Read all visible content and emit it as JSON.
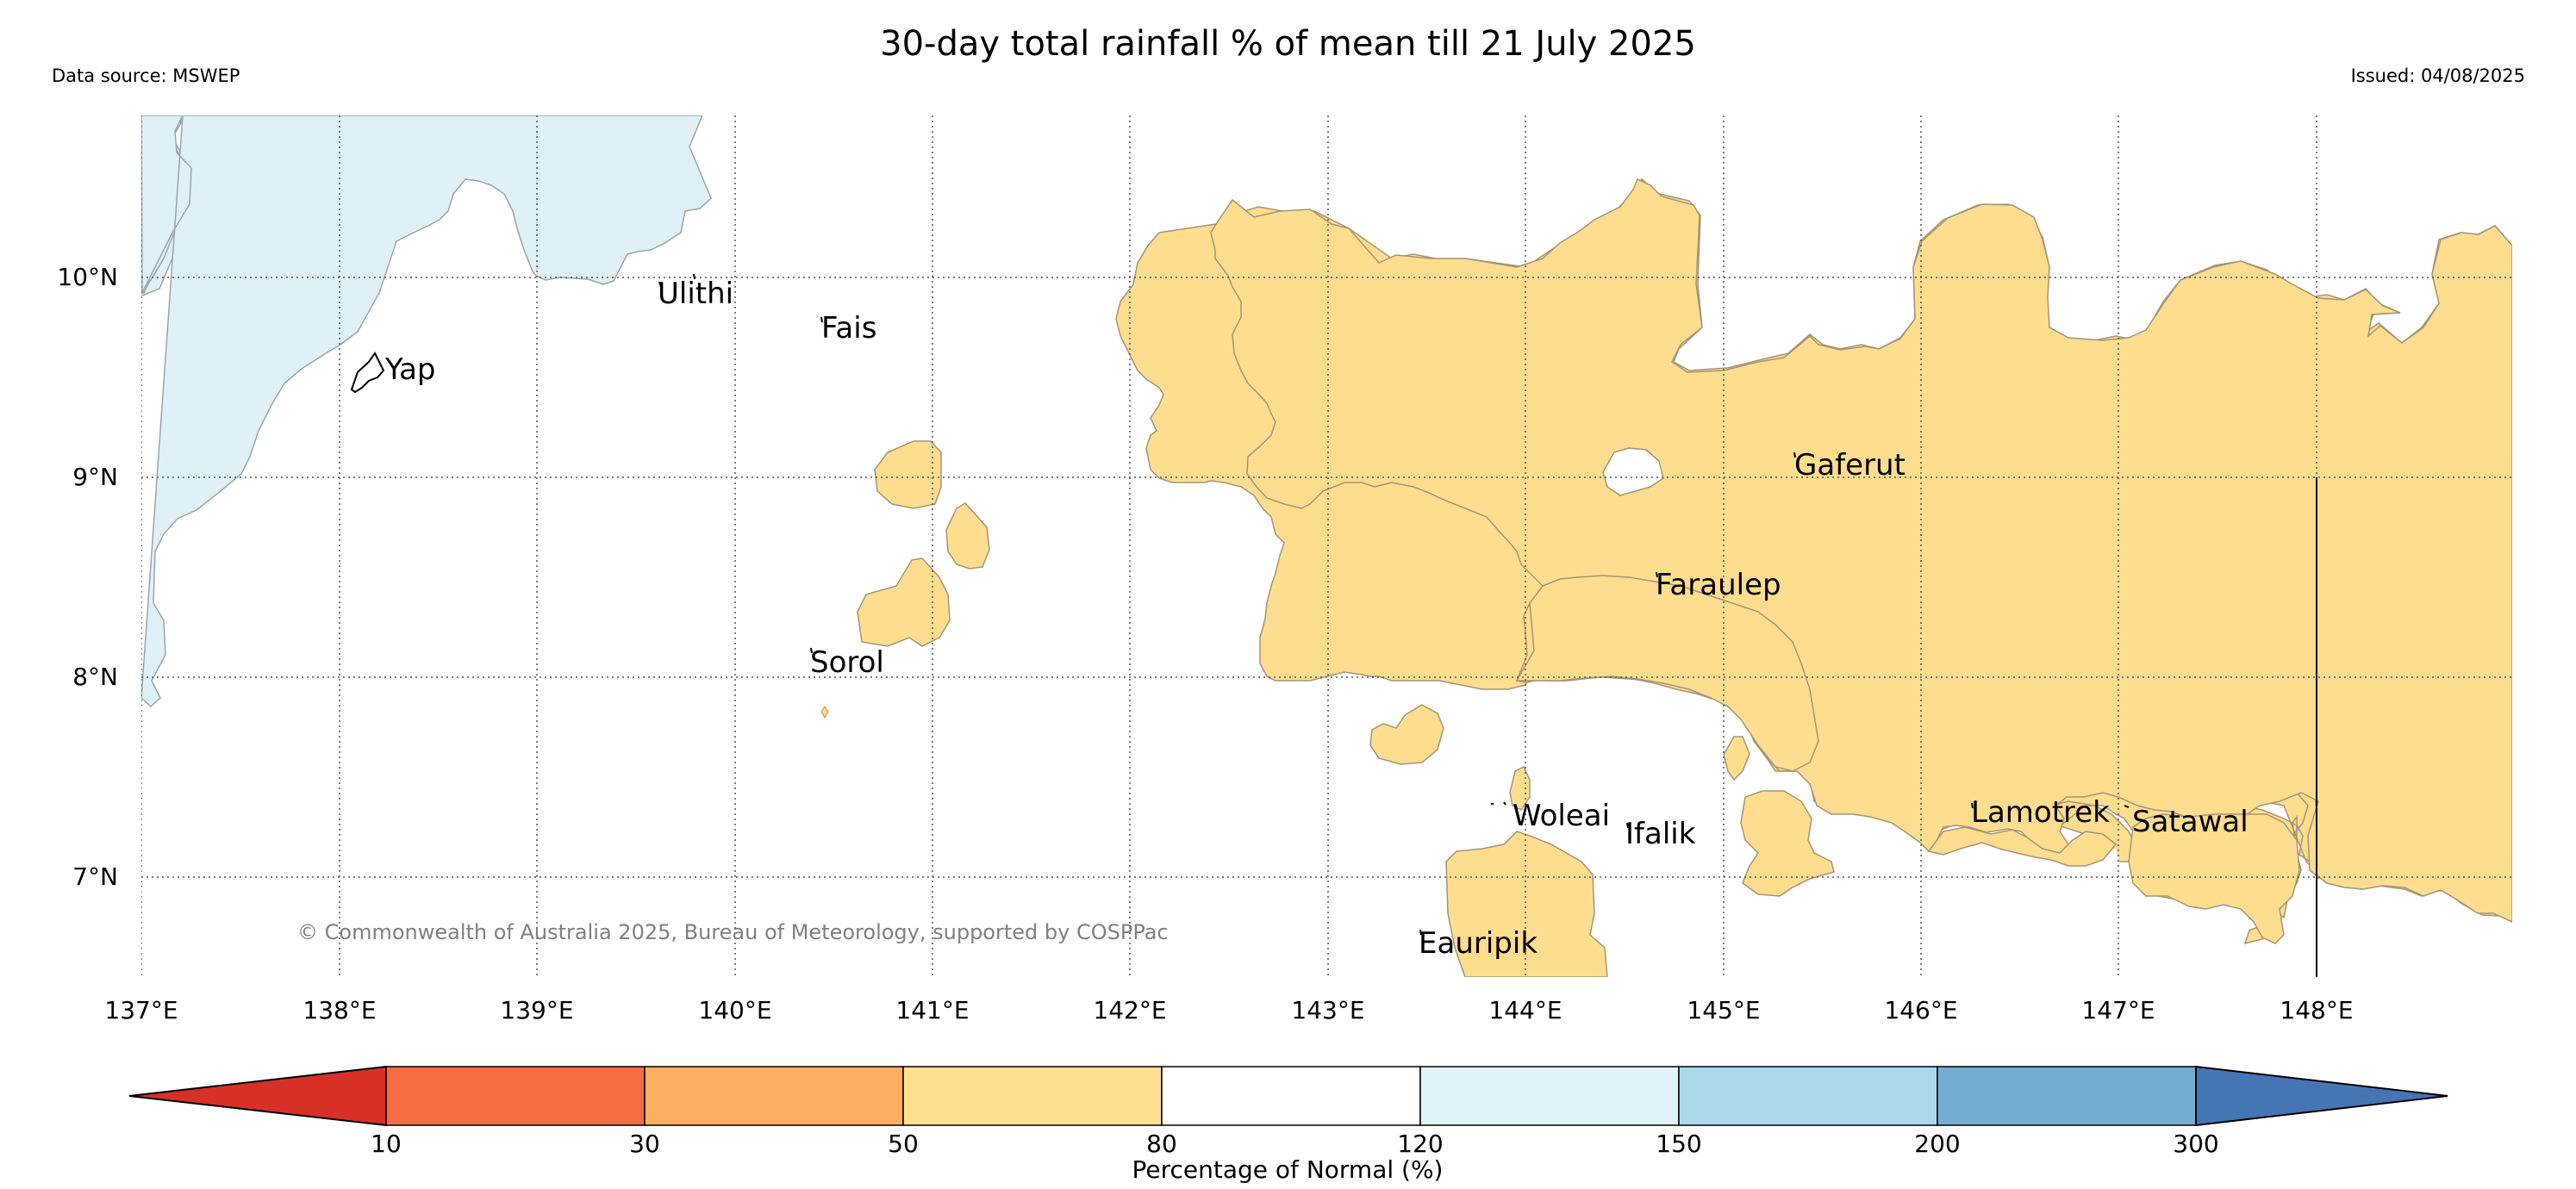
{
  "header": {
    "title": "30-day total rainfall % of mean till 21 July 2025",
    "source": "Data source: MSWEP",
    "issued": "Issued: 04/08/2025"
  },
  "map": {
    "lat_labels": [
      "10°N",
      "9°N",
      "8°N",
      "7°N"
    ],
    "lon_labels": [
      "137°E",
      "138°E",
      "139°E",
      "140°E",
      "141°E",
      "142°E",
      "143°E",
      "144°E",
      "145°E",
      "146°E",
      "147°E",
      "148°E"
    ],
    "places": [
      "Yap",
      "Ulithi",
      "Fais",
      "Sorol",
      "Gaferut",
      "Faraulep",
      "Woleai",
      "Ifalik",
      "Lamotrek",
      "Satawal",
      "Eauripik"
    ],
    "copyright": "© Commonwealth of Australia 2025, Bureau of Meteorology, supported by COSPPac",
    "region_colors": {
      "50-80": "#fedd8f",
      "120-150": "#dff1f7"
    }
  },
  "colorbar": {
    "ticks": [
      "10",
      "30",
      "50",
      "80",
      "120",
      "150",
      "200",
      "300"
    ],
    "label": "Percentage of Normal (%)",
    "colors": [
      "#d73027",
      "#f46d43",
      "#fdae61",
      "#fee090",
      "#ffffff",
      "#e0f3f8",
      "#abd9e9",
      "#74add1",
      "#4575b4"
    ]
  }
}
